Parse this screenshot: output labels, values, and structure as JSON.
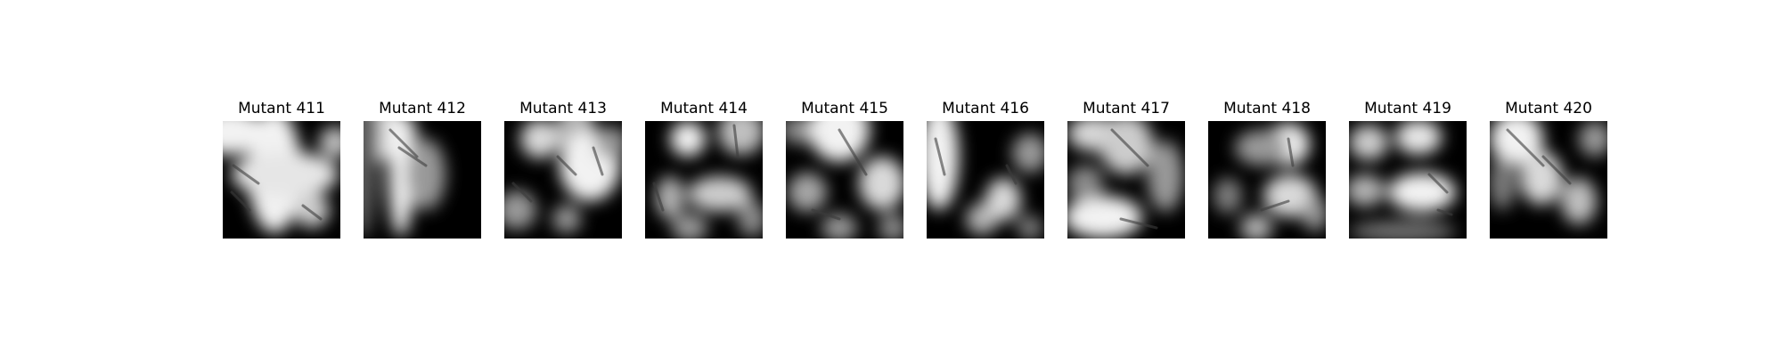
{
  "figure": {
    "panels": [
      {
        "title": "Mutant 411",
        "image": "grayscale-blurred-pattern"
      },
      {
        "title": "Mutant 412",
        "image": "grayscale-blurred-pattern"
      },
      {
        "title": "Mutant 413",
        "image": "grayscale-blurred-pattern"
      },
      {
        "title": "Mutant 414",
        "image": "grayscale-blurred-pattern"
      },
      {
        "title": "Mutant 415",
        "image": "grayscale-blurred-pattern"
      },
      {
        "title": "Mutant 416",
        "image": "grayscale-blurred-pattern"
      },
      {
        "title": "Mutant 417",
        "image": "grayscale-blurred-pattern"
      },
      {
        "title": "Mutant 418",
        "image": "grayscale-blurred-pattern"
      },
      {
        "title": "Mutant 419",
        "image": "grayscale-blurred-pattern"
      },
      {
        "title": "Mutant 420",
        "image": "grayscale-blurred-pattern"
      }
    ]
  }
}
